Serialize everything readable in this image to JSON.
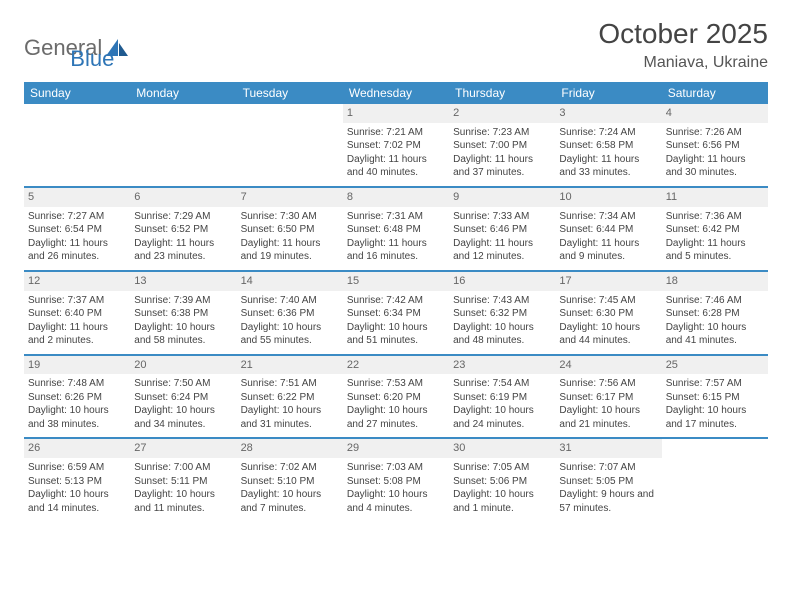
{
  "logo": {
    "gen": "General",
    "blue": "Blue"
  },
  "title": "October 2025",
  "location": "Maniava, Ukraine",
  "colors": {
    "header_bg": "#3b8bc4",
    "header_text": "#ffffff",
    "divider": "#3b8bc4",
    "daynum_bg": "#f0f0f0",
    "daynum_text": "#666666",
    "cell_text": "#444444",
    "logo_gray": "#6b6b6b",
    "logo_blue": "#2e75b6"
  },
  "day_headers": [
    "Sunday",
    "Monday",
    "Tuesday",
    "Wednesday",
    "Thursday",
    "Friday",
    "Saturday"
  ],
  "weeks": [
    [
      {
        "n": "",
        "sr": "",
        "ss": "",
        "dl": ""
      },
      {
        "n": "",
        "sr": "",
        "ss": "",
        "dl": ""
      },
      {
        "n": "",
        "sr": "",
        "ss": "",
        "dl": ""
      },
      {
        "n": "1",
        "sr": "Sunrise: 7:21 AM",
        "ss": "Sunset: 7:02 PM",
        "dl": "Daylight: 11 hours and 40 minutes."
      },
      {
        "n": "2",
        "sr": "Sunrise: 7:23 AM",
        "ss": "Sunset: 7:00 PM",
        "dl": "Daylight: 11 hours and 37 minutes."
      },
      {
        "n": "3",
        "sr": "Sunrise: 7:24 AM",
        "ss": "Sunset: 6:58 PM",
        "dl": "Daylight: 11 hours and 33 minutes."
      },
      {
        "n": "4",
        "sr": "Sunrise: 7:26 AM",
        "ss": "Sunset: 6:56 PM",
        "dl": "Daylight: 11 hours and 30 minutes."
      }
    ],
    [
      {
        "n": "5",
        "sr": "Sunrise: 7:27 AM",
        "ss": "Sunset: 6:54 PM",
        "dl": "Daylight: 11 hours and 26 minutes."
      },
      {
        "n": "6",
        "sr": "Sunrise: 7:29 AM",
        "ss": "Sunset: 6:52 PM",
        "dl": "Daylight: 11 hours and 23 minutes."
      },
      {
        "n": "7",
        "sr": "Sunrise: 7:30 AM",
        "ss": "Sunset: 6:50 PM",
        "dl": "Daylight: 11 hours and 19 minutes."
      },
      {
        "n": "8",
        "sr": "Sunrise: 7:31 AM",
        "ss": "Sunset: 6:48 PM",
        "dl": "Daylight: 11 hours and 16 minutes."
      },
      {
        "n": "9",
        "sr": "Sunrise: 7:33 AM",
        "ss": "Sunset: 6:46 PM",
        "dl": "Daylight: 11 hours and 12 minutes."
      },
      {
        "n": "10",
        "sr": "Sunrise: 7:34 AM",
        "ss": "Sunset: 6:44 PM",
        "dl": "Daylight: 11 hours and 9 minutes."
      },
      {
        "n": "11",
        "sr": "Sunrise: 7:36 AM",
        "ss": "Sunset: 6:42 PM",
        "dl": "Daylight: 11 hours and 5 minutes."
      }
    ],
    [
      {
        "n": "12",
        "sr": "Sunrise: 7:37 AM",
        "ss": "Sunset: 6:40 PM",
        "dl": "Daylight: 11 hours and 2 minutes."
      },
      {
        "n": "13",
        "sr": "Sunrise: 7:39 AM",
        "ss": "Sunset: 6:38 PM",
        "dl": "Daylight: 10 hours and 58 minutes."
      },
      {
        "n": "14",
        "sr": "Sunrise: 7:40 AM",
        "ss": "Sunset: 6:36 PM",
        "dl": "Daylight: 10 hours and 55 minutes."
      },
      {
        "n": "15",
        "sr": "Sunrise: 7:42 AM",
        "ss": "Sunset: 6:34 PM",
        "dl": "Daylight: 10 hours and 51 minutes."
      },
      {
        "n": "16",
        "sr": "Sunrise: 7:43 AM",
        "ss": "Sunset: 6:32 PM",
        "dl": "Daylight: 10 hours and 48 minutes."
      },
      {
        "n": "17",
        "sr": "Sunrise: 7:45 AM",
        "ss": "Sunset: 6:30 PM",
        "dl": "Daylight: 10 hours and 44 minutes."
      },
      {
        "n": "18",
        "sr": "Sunrise: 7:46 AM",
        "ss": "Sunset: 6:28 PM",
        "dl": "Daylight: 10 hours and 41 minutes."
      }
    ],
    [
      {
        "n": "19",
        "sr": "Sunrise: 7:48 AM",
        "ss": "Sunset: 6:26 PM",
        "dl": "Daylight: 10 hours and 38 minutes."
      },
      {
        "n": "20",
        "sr": "Sunrise: 7:50 AM",
        "ss": "Sunset: 6:24 PM",
        "dl": "Daylight: 10 hours and 34 minutes."
      },
      {
        "n": "21",
        "sr": "Sunrise: 7:51 AM",
        "ss": "Sunset: 6:22 PM",
        "dl": "Daylight: 10 hours and 31 minutes."
      },
      {
        "n": "22",
        "sr": "Sunrise: 7:53 AM",
        "ss": "Sunset: 6:20 PM",
        "dl": "Daylight: 10 hours and 27 minutes."
      },
      {
        "n": "23",
        "sr": "Sunrise: 7:54 AM",
        "ss": "Sunset: 6:19 PM",
        "dl": "Daylight: 10 hours and 24 minutes."
      },
      {
        "n": "24",
        "sr": "Sunrise: 7:56 AM",
        "ss": "Sunset: 6:17 PM",
        "dl": "Daylight: 10 hours and 21 minutes."
      },
      {
        "n": "25",
        "sr": "Sunrise: 7:57 AM",
        "ss": "Sunset: 6:15 PM",
        "dl": "Daylight: 10 hours and 17 minutes."
      }
    ],
    [
      {
        "n": "26",
        "sr": "Sunrise: 6:59 AM",
        "ss": "Sunset: 5:13 PM",
        "dl": "Daylight: 10 hours and 14 minutes."
      },
      {
        "n": "27",
        "sr": "Sunrise: 7:00 AM",
        "ss": "Sunset: 5:11 PM",
        "dl": "Daylight: 10 hours and 11 minutes."
      },
      {
        "n": "28",
        "sr": "Sunrise: 7:02 AM",
        "ss": "Sunset: 5:10 PM",
        "dl": "Daylight: 10 hours and 7 minutes."
      },
      {
        "n": "29",
        "sr": "Sunrise: 7:03 AM",
        "ss": "Sunset: 5:08 PM",
        "dl": "Daylight: 10 hours and 4 minutes."
      },
      {
        "n": "30",
        "sr": "Sunrise: 7:05 AM",
        "ss": "Sunset: 5:06 PM",
        "dl": "Daylight: 10 hours and 1 minute."
      },
      {
        "n": "31",
        "sr": "Sunrise: 7:07 AM",
        "ss": "Sunset: 5:05 PM",
        "dl": "Daylight: 9 hours and 57 minutes."
      },
      {
        "n": "",
        "sr": "",
        "ss": "",
        "dl": ""
      }
    ]
  ]
}
